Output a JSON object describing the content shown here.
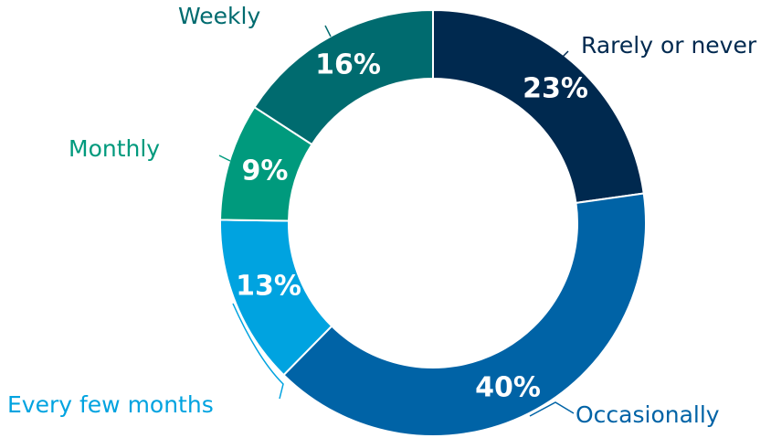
{
  "chart_data": {
    "type": "pie",
    "donut": true,
    "categories": [
      "Rarely or never",
      "Occasionally",
      "Every few months",
      "Monthly",
      "Weekly"
    ],
    "values": [
      23,
      40,
      13,
      9,
      16
    ],
    "value_labels": [
      "23%",
      "40%",
      "13%",
      "9%",
      "16%"
    ],
    "colors": [
      "#00294f",
      "#0063a6",
      "#00a3e0",
      "#009a7d",
      "#006b6f"
    ],
    "label_colors": [
      "#00294f",
      "#0063a6",
      "#00a3e0",
      "#009a7d",
      "#006b6f"
    ],
    "start_angle_deg": 0,
    "direction": "clockwise",
    "title": "",
    "legend": "none"
  }
}
